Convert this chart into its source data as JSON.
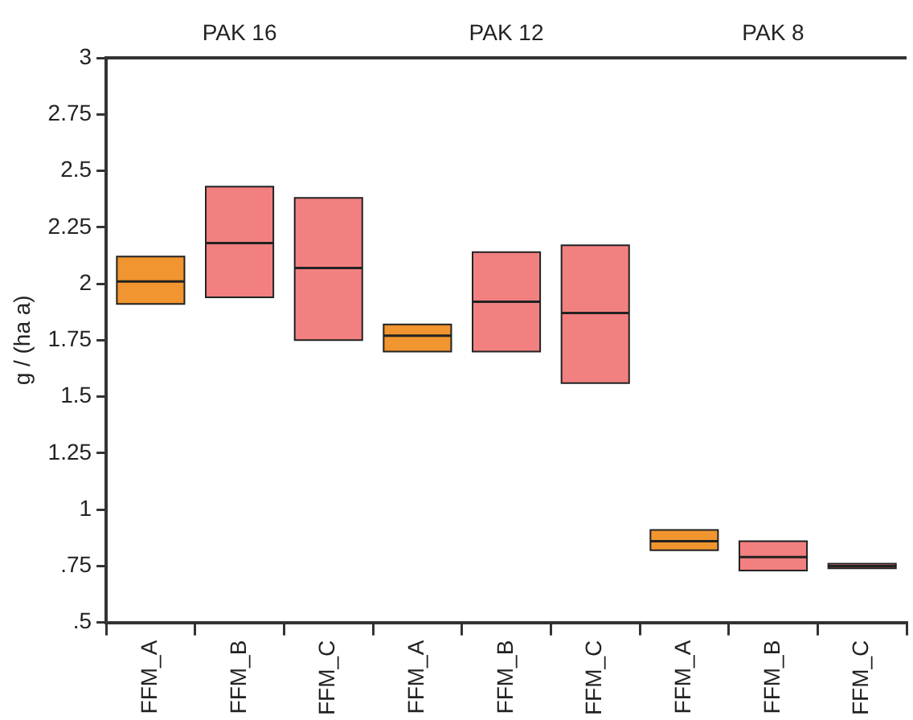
{
  "chart_data": {
    "type": "box",
    "ylabel": "g / (ha a)",
    "categories": [
      "FFM_A",
      "FFM_B",
      "FFM_C",
      "FFM_A",
      "FFM_B",
      "FFM_C",
      "FFM_A",
      "FFM_B",
      "FFM_C"
    ],
    "annotations": [
      "PAK 16",
      "PAK 12",
      "PAK 8"
    ],
    "colors": [
      "#f0952f",
      "#f28080",
      "#f28080",
      "#f0952f",
      "#f28080",
      "#f28080",
      "#f0952f",
      "#f28080",
      "#f28080"
    ],
    "boxes": [
      {
        "low": 1.91,
        "q1": 1.91,
        "median": 2.01,
        "q3": 2.12,
        "high": 2.12
      },
      {
        "low": 1.94,
        "q1": 1.94,
        "median": 2.18,
        "q3": 2.43,
        "high": 2.43
      },
      {
        "low": 1.75,
        "q1": 1.75,
        "median": 2.07,
        "q3": 2.38,
        "high": 2.38
      },
      {
        "low": 1.7,
        "q1": 1.7,
        "median": 1.77,
        "q3": 1.82,
        "high": 1.82
      },
      {
        "low": 1.7,
        "q1": 1.7,
        "median": 1.92,
        "q3": 2.14,
        "high": 2.14
      },
      {
        "low": 1.56,
        "q1": 1.56,
        "median": 1.87,
        "q3": 2.17,
        "high": 2.17
      },
      {
        "low": 0.82,
        "q1": 0.82,
        "median": 0.86,
        "q3": 0.91,
        "high": 0.91
      },
      {
        "low": 0.73,
        "q1": 0.73,
        "median": 0.79,
        "q3": 0.86,
        "high": 0.86
      },
      {
        "low": 0.74,
        "q1": 0.74,
        "median": 0.75,
        "q3": 0.76,
        "high": 0.76
      }
    ],
    "ylim": [
      0.5,
      3
    ],
    "yticks": [
      {
        "value": 0.5,
        "label": ".5"
      },
      {
        "value": 0.75,
        "label": ".75"
      },
      1,
      1.25,
      1.5,
      1.75,
      2,
      2.25,
      2.5,
      2.75,
      3
    ],
    "grid": false,
    "legend": false
  }
}
